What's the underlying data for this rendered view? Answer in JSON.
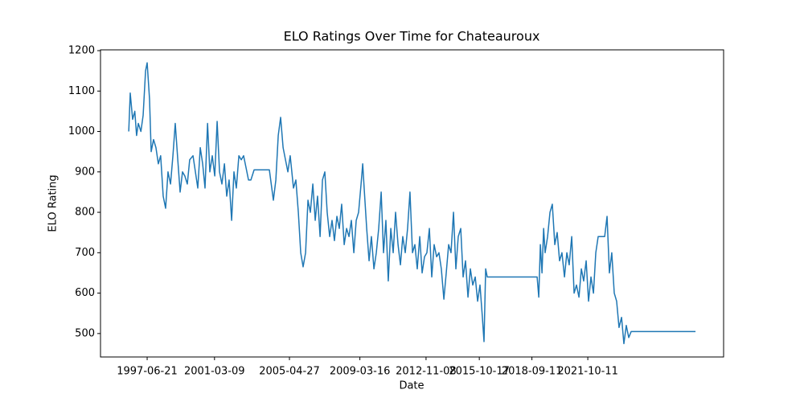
{
  "chart_data": {
    "type": "line",
    "title": "ELO Ratings Over Time for Chateauroux",
    "x_label": "Date",
    "y_label": "ELO Rating",
    "color": "#1f77b4",
    "grid": false,
    "x": [
      "1996-06-15",
      "1996-07-15",
      "1996-09-01",
      "1996-10-15",
      "1996-11-20",
      "1996-12-25",
      "1997-02-15",
      "1997-04-01",
      "1997-05-20",
      "1997-06-21",
      "1997-08-08",
      "1997-09-10",
      "1997-10-28",
      "1997-12-15",
      "1998-02-01",
      "1998-03-20",
      "1998-05-10",
      "1998-06-28",
      "1998-08-15",
      "1998-10-05",
      "1998-11-22",
      "1999-01-08",
      "1999-02-28",
      "1999-04-16",
      "1999-06-03",
      "1999-07-20",
      "1999-09-08",
      "1999-10-26",
      "2000-01-01",
      "2000-02-18",
      "2000-04-06",
      "2000-05-26",
      "2000-07-13",
      "2000-08-30",
      "2000-10-20",
      "2000-12-05",
      "2001-01-23",
      "2001-03-14",
      "2001-05-01",
      "2001-06-18",
      "2001-08-05",
      "2001-09-25",
      "2001-11-10",
      "2001-12-28",
      "2002-02-17",
      "2002-04-05",
      "2002-05-23",
      "2002-07-13",
      "2002-08-30",
      "2002-10-16",
      "2002-12-05",
      "2003-01-23",
      "2003-03-12",
      "2003-05-16",
      "2003-07-20",
      "2004-03-18",
      "2004-06-07",
      "2004-07-27",
      "2004-09-13",
      "2004-10-31",
      "2004-12-20",
      "2005-02-06",
      "2005-03-26",
      "2005-05-12",
      "2005-07-17",
      "2005-09-03",
      "2005-10-23",
      "2005-12-10",
      "2006-01-27",
      "2006-03-18",
      "2006-05-05",
      "2006-06-22",
      "2006-08-11",
      "2006-09-28",
      "2006-11-14",
      "2007-01-04",
      "2007-02-21",
      "2007-04-10",
      "2007-05-27",
      "2007-07-16",
      "2007-09-02",
      "2007-10-20",
      "2007-12-09",
      "2008-01-26",
      "2008-03-14",
      "2008-05-04",
      "2008-06-21",
      "2008-08-08",
      "2008-09-25",
      "2008-11-14",
      "2009-01-01",
      "2009-02-18",
      "2009-04-09",
      "2009-05-12",
      "2009-06-10",
      "2009-07-31",
      "2009-09-17",
      "2009-11-03",
      "2009-12-24",
      "2010-02-10",
      "2010-03-30",
      "2010-05-19",
      "2010-07-05",
      "2010-08-22",
      "2010-10-09",
      "2010-11-29",
      "2011-01-16",
      "2011-03-05",
      "2011-04-24",
      "2011-06-11",
      "2011-07-28",
      "2011-09-16",
      "2011-11-02",
      "2011-12-20",
      "2012-02-09",
      "2012-03-28",
      "2012-05-15",
      "2012-07-04",
      "2012-08-21",
      "2012-10-08",
      "2012-11-25",
      "2013-01-14",
      "2013-03-03",
      "2013-04-20",
      "2013-06-09",
      "2013-07-26",
      "2013-09-12",
      "2013-11-02",
      "2013-12-20",
      "2014-02-06",
      "2014-03-26",
      "2014-05-15",
      "2014-07-02",
      "2014-08-19",
      "2014-10-08",
      "2014-11-25",
      "2015-01-12",
      "2015-03-03",
      "2015-04-20",
      "2015-06-07",
      "2015-07-27",
      "2015-09-13",
      "2015-10-31",
      "2015-12-18",
      "2016-01-20",
      "2016-02-22",
      "2016-03-25",
      "2018-12-25",
      "2019-01-27",
      "2019-02-28",
      "2019-04-02",
      "2019-05-05",
      "2019-06-04",
      "2019-07-24",
      "2019-09-10",
      "2019-10-27",
      "2019-12-16",
      "2020-02-02",
      "2020-03-21",
      "2020-05-08",
      "2020-06-28",
      "2020-08-15",
      "2020-10-01",
      "2020-11-21",
      "2021-01-08",
      "2021-02-25",
      "2021-04-16",
      "2021-06-03",
      "2021-07-20",
      "2021-09-08",
      "2021-10-26",
      "2021-12-14",
      "2022-02-02",
      "2022-03-21",
      "2022-05-08",
      "2022-09-16",
      "2022-11-03",
      "2022-12-20",
      "2023-02-06",
      "2023-03-28",
      "2023-05-15",
      "2023-07-02",
      "2023-08-22",
      "2023-10-08",
      "2023-11-25",
      "2024-01-14",
      "2024-03-03",
      "2027-09-20"
    ],
    "values": [
      1000,
      1095,
      1030,
      1050,
      990,
      1020,
      1000,
      1040,
      1150,
      1170,
      1080,
      950,
      980,
      960,
      920,
      940,
      840,
      810,
      900,
      870,
      940,
      1020,
      930,
      850,
      900,
      890,
      870,
      930,
      940,
      900,
      860,
      960,
      920,
      860,
      1020,
      900,
      940,
      890,
      1025,
      900,
      870,
      920,
      840,
      880,
      780,
      900,
      860,
      940,
      930,
      940,
      910,
      880,
      880,
      905,
      905,
      905,
      830,
      880,
      990,
      1035,
      960,
      930,
      900,
      940,
      860,
      880,
      800,
      700,
      665,
      700,
      830,
      800,
      870,
      780,
      840,
      740,
      880,
      900,
      800,
      740,
      780,
      730,
      790,
      760,
      820,
      720,
      760,
      740,
      780,
      700,
      780,
      800,
      870,
      920,
      860,
      760,
      680,
      740,
      660,
      700,
      760,
      850,
      700,
      780,
      630,
      760,
      700,
      800,
      720,
      670,
      740,
      700,
      760,
      850,
      700,
      720,
      660,
      740,
      650,
      690,
      700,
      760,
      640,
      720,
      690,
      700,
      660,
      585,
      650,
      720,
      700,
      800,
      660,
      740,
      760,
      640,
      680,
      590,
      660,
      620,
      640,
      580,
      620,
      540,
      480,
      660,
      640,
      640,
      590,
      720,
      650,
      760,
      700,
      740,
      800,
      820,
      720,
      750,
      680,
      700,
      640,
      700,
      670,
      740,
      600,
      620,
      590,
      660,
      630,
      680,
      580,
      640,
      600,
      700,
      740,
      740,
      790,
      650,
      700,
      600,
      580,
      515,
      540,
      475,
      520,
      490,
      505,
      505
    ],
    "xlim": [
      "1994-11-24",
      "2029-04-08"
    ],
    "xticks": [
      "1997-06-21",
      "2001-03-09",
      "2005-04-27",
      "2009-03-16",
      "2012-11-08",
      "2015-10-17",
      "2018-09-11",
      "2021-10-11"
    ],
    "ylim": [
      442,
      1202
    ],
    "yticks": [
      500,
      600,
      700,
      800,
      900,
      1000,
      1100,
      1200
    ]
  }
}
